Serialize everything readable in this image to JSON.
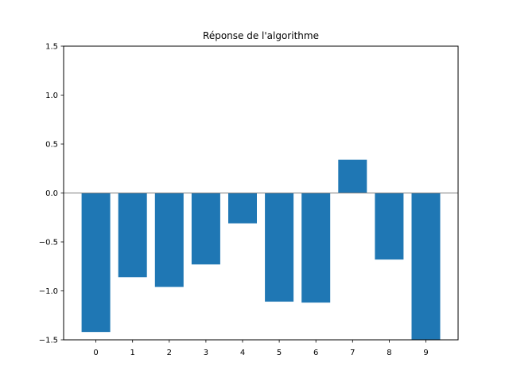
{
  "chart_data": {
    "type": "bar",
    "title": "Réponse de l'algorithme",
    "xlabel": "",
    "ylabel": "",
    "categories": [
      "0",
      "1",
      "2",
      "3",
      "4",
      "5",
      "6",
      "7",
      "8",
      "9"
    ],
    "values": [
      -1.42,
      -0.86,
      -0.96,
      -0.73,
      -0.31,
      -1.11,
      -1.12,
      0.34,
      -0.68,
      -1.5
    ],
    "ylim": [
      -1.5,
      1.5
    ],
    "yticks": [
      -1.5,
      -1.0,
      -0.5,
      0.0,
      0.5,
      1.0,
      1.5
    ],
    "ytick_labels": [
      "−1.5",
      "−1.0",
      "−0.5",
      "0.0",
      "0.5",
      "1.0",
      "1.5"
    ],
    "bar_color": "#1f77b4",
    "zero_line_color": "#808080",
    "grid": false
  }
}
